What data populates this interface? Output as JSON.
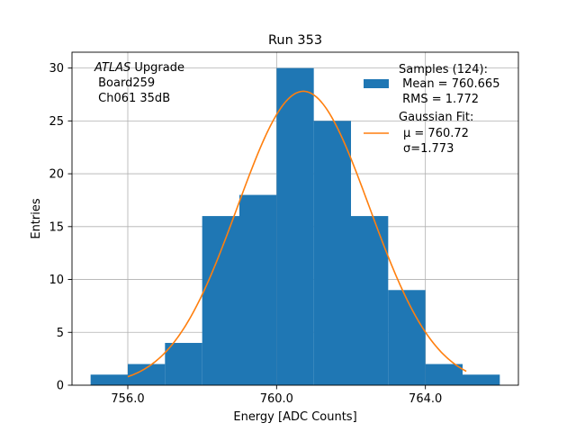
{
  "chart_data": {
    "type": "bar",
    "title": "Run 353",
    "xlabel": "Energy [ADC Counts]",
    "ylabel": "Entries",
    "xlim": [
      754.5,
      766.5
    ],
    "ylim": [
      0,
      31.5
    ],
    "xticks": [
      756.0,
      760.0,
      764.0
    ],
    "xtick_labels": [
      "756.0",
      "760.0",
      "764.0"
    ],
    "yticks": [
      0,
      5,
      10,
      15,
      20,
      25,
      30
    ],
    "grid": true,
    "bin_edges": [
      755,
      756,
      757,
      758,
      759,
      760,
      761,
      762,
      763,
      764,
      765,
      766
    ],
    "values": [
      1,
      2,
      4,
      16,
      18,
      30,
      25,
      16,
      9,
      2,
      1
    ],
    "bar_color": "#1f77b4",
    "fit": {
      "mu": 760.72,
      "sigma": 1.773,
      "amplitude": 27.8,
      "x_range": [
        756.0,
        765.1
      ],
      "color": "#ff7f0e"
    },
    "annotation": {
      "italic": "ATLAS",
      "rest": " Upgrade",
      "line2": " Board259",
      "line3": " Ch061 35dB"
    },
    "legend": {
      "position": "top-right",
      "samples_title": "Samples (124):",
      "samples_mean": " Mean = 760.665",
      "samples_rms": " RMS = 1.772",
      "fit_title": "Gaussian Fit:",
      "fit_mu": "μ = 760.72",
      "fit_sigma": "σ=1.773"
    }
  }
}
